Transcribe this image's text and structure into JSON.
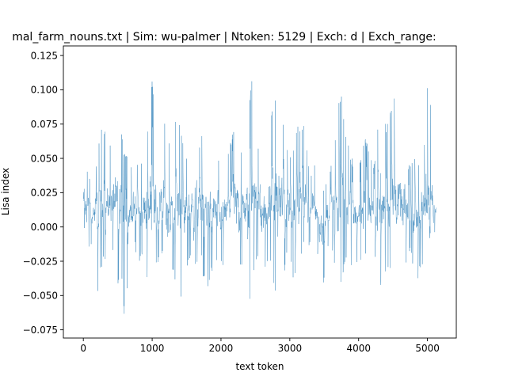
{
  "chart_data": {
    "type": "line",
    "title": "mal_farm_nouns.txt | Sim: wu-palmer | Ntoken: 5129 | Exch: d | Exch_range:",
    "xlabel": "text token",
    "ylabel": "Lisa index",
    "xlim": [
      -290,
      5419
    ],
    "ylim": [
      -0.081,
      0.132
    ],
    "x_ticks": [
      0,
      1000,
      2000,
      3000,
      4000,
      5000
    ],
    "x_tick_labels": [
      "0",
      "1000",
      "2000",
      "3000",
      "4000",
      "5000"
    ],
    "y_ticks": [
      -0.075,
      -0.05,
      -0.025,
      0.0,
      0.025,
      0.05,
      0.075,
      0.1,
      0.125
    ],
    "y_tick_labels": [
      "−0.075",
      "−0.050",
      "−0.025",
      "0.000",
      "0.025",
      "0.050",
      "0.075",
      "0.100",
      "0.125"
    ],
    "grid": false,
    "series": [
      {
        "color": "#1f77b4",
        "x_start": 0,
        "x_end": 5128,
        "n_points": 5129,
        "envelope": {
          "x": [
            0,
            50,
            100,
            150,
            200,
            250,
            300,
            350,
            400,
            450,
            500,
            550,
            600,
            650,
            700,
            750,
            800,
            850,
            900,
            950,
            1000,
            1050,
            1100,
            1150,
            1200,
            1250,
            1300,
            1350,
            1400,
            1450,
            1500,
            1550,
            1600,
            1650,
            1700,
            1750,
            1800,
            1850,
            1900,
            1950,
            2000,
            2050,
            2100,
            2150,
            2200,
            2250,
            2300,
            2350,
            2400,
            2450,
            2500,
            2550,
            2600,
            2650,
            2700,
            2750,
            2800,
            2850,
            2900,
            2950,
            3000,
            3050,
            3100,
            3150,
            3200,
            3250,
            3300,
            3350,
            3400,
            3450,
            3500,
            3550,
            3600,
            3650,
            3700,
            3750,
            3800,
            3850,
            3900,
            3950,
            4000,
            4050,
            4100,
            4150,
            4200,
            4250,
            4300,
            4350,
            4400,
            4450,
            4500,
            4550,
            4600,
            4650,
            4700,
            4750,
            4800,
            4850,
            4900,
            4950,
            5000,
            5050,
            5100,
            5128
          ],
          "upper": [
            0.06,
            0.045,
            0.035,
            0.03,
            0.055,
            0.076,
            0.072,
            0.068,
            0.06,
            0.085,
            0.075,
            0.072,
            0.055,
            0.05,
            0.048,
            0.045,
            0.05,
            0.052,
            0.06,
            0.08,
            0.111,
            0.07,
            0.06,
            0.076,
            0.075,
            0.065,
            0.055,
            0.085,
            0.08,
            0.06,
            0.055,
            0.07,
            0.075,
            0.065,
            0.06,
            0.075,
            0.08,
            0.072,
            0.05,
            0.055,
            0.05,
            0.045,
            0.055,
            0.065,
            0.075,
            0.07,
            0.055,
            0.05,
            0.09,
            0.107,
            0.075,
            0.06,
            0.05,
            0.055,
            0.065,
            0.09,
            0.098,
            0.09,
            0.08,
            0.06,
            0.055,
            0.06,
            0.075,
            0.07,
            0.078,
            0.055,
            0.035,
            0.05,
            0.045,
            0.03,
            0.03,
            0.035,
            0.045,
            0.06,
            0.09,
            0.1,
            0.07,
            0.06,
            0.05,
            0.05,
            0.045,
            0.06,
            0.065,
            0.06,
            0.045,
            0.05,
            0.09,
            0.095,
            0.075,
            0.08,
            0.098,
            0.09,
            0.065,
            0.06,
            0.05,
            0.045,
            0.05,
            0.055,
            0.045,
            0.06,
            0.107,
            0.09,
            0.03,
            0.025
          ],
          "lower": [
            0.0,
            -0.012,
            -0.018,
            -0.01,
            -0.052,
            -0.035,
            -0.02,
            -0.03,
            -0.015,
            -0.025,
            -0.045,
            -0.035,
            -0.069,
            -0.04,
            -0.025,
            -0.015,
            -0.03,
            -0.02,
            -0.04,
            -0.035,
            -0.05,
            -0.03,
            -0.025,
            -0.02,
            -0.04,
            -0.045,
            -0.035,
            -0.04,
            -0.05,
            -0.06,
            -0.03,
            -0.025,
            -0.035,
            -0.03,
            -0.02,
            -0.04,
            -0.045,
            -0.035,
            -0.03,
            -0.025,
            -0.03,
            -0.03,
            -0.025,
            -0.03,
            -0.04,
            -0.035,
            -0.03,
            -0.025,
            -0.071,
            -0.035,
            -0.03,
            -0.02,
            -0.045,
            -0.03,
            -0.025,
            -0.04,
            -0.05,
            -0.035,
            -0.045,
            -0.025,
            -0.02,
            -0.04,
            -0.03,
            -0.025,
            -0.015,
            -0.02,
            -0.01,
            -0.015,
            -0.02,
            -0.055,
            -0.04,
            -0.015,
            -0.01,
            -0.03,
            -0.045,
            -0.04,
            -0.03,
            -0.025,
            -0.035,
            -0.03,
            -0.025,
            -0.03,
            -0.025,
            -0.035,
            -0.03,
            -0.025,
            -0.04,
            -0.045,
            -0.035,
            -0.03,
            -0.04,
            -0.035,
            -0.03,
            -0.035,
            -0.025,
            -0.02,
            -0.03,
            -0.04,
            -0.03,
            -0.035,
            -0.064,
            -0.055,
            -0.01,
            -0.005
          ]
        }
      }
    ]
  }
}
